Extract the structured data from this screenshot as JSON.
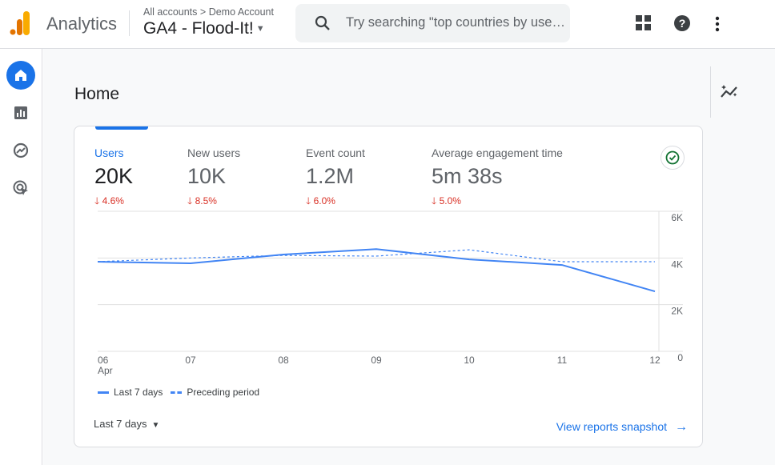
{
  "header": {
    "app_name": "Analytics",
    "breadcrumb": {
      "root": "All accounts",
      "separator": ">",
      "account": "Demo Account"
    },
    "property": "GA4 - Flood-It!",
    "search_placeholder": "Try searching \"top countries by users\""
  },
  "sidebar": {
    "items": [
      {
        "name": "home",
        "active": true
      },
      {
        "name": "reports"
      },
      {
        "name": "explore"
      },
      {
        "name": "advertising"
      }
    ]
  },
  "page": {
    "title": "Home"
  },
  "card": {
    "metrics": [
      {
        "label": "Users",
        "value": "20K",
        "change": "4.6%",
        "direction": "down"
      },
      {
        "label": "New users",
        "value": "10K",
        "change": "8.5%",
        "direction": "down"
      },
      {
        "label": "Event count",
        "value": "1.2M",
        "change": "6.0%",
        "direction": "down"
      },
      {
        "label": "Average engagement time",
        "value": "5m 38s",
        "change": "5.0%",
        "direction": "down"
      }
    ],
    "date_range": "Last 7 days",
    "snapshot_link": "View reports snapshot"
  },
  "colors": {
    "accent": "#1a73e8",
    "line": "#4285f4",
    "negative": "#d93025"
  },
  "chart_data": {
    "type": "line",
    "categories": [
      "06",
      "07",
      "08",
      "09",
      "10",
      "11",
      "12"
    ],
    "x_sublabel": "Apr",
    "yticks": [
      "0",
      "2K",
      "4K",
      "6K"
    ],
    "ylim": [
      0,
      6000
    ],
    "series": [
      {
        "name": "Last 7 days",
        "style": "solid",
        "values": [
          3840,
          3770,
          4150,
          4380,
          3940,
          3700,
          2570
        ]
      },
      {
        "name": "Preceding period",
        "style": "dashed",
        "values": [
          3840,
          4000,
          4110,
          4080,
          4350,
          3840,
          3840
        ]
      }
    ],
    "legend": "bottom-left",
    "grid": true
  }
}
